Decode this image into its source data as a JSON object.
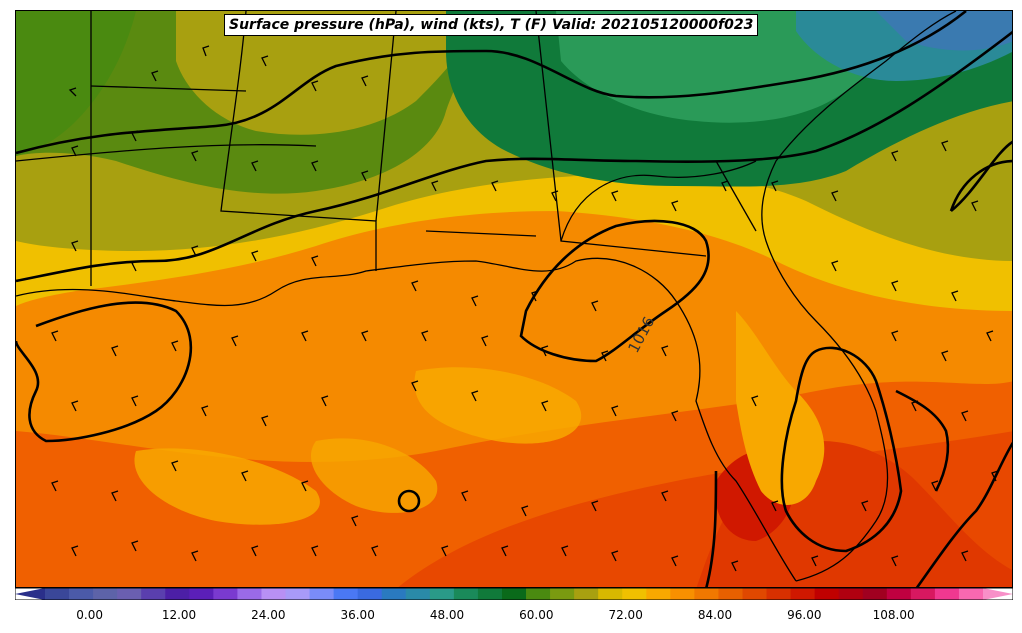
{
  "title": "Surface pressure (hPa), wind (kts), T (F) Valid: 202105120000f023",
  "isobar_label": "1016",
  "colorbar": {
    "ticks": [
      "0.00",
      "12.00",
      "24.00",
      "36.00",
      "48.00",
      "60.00",
      "72.00",
      "84.00",
      "96.00",
      "108.00"
    ],
    "tick_values": [
      0,
      12,
      24,
      36,
      48,
      60,
      72,
      84,
      96,
      108
    ],
    "range": [
      -6,
      120
    ],
    "colors": [
      "#2a2f8a",
      "#3a4799",
      "#4b5aa8",
      "#5d63a8",
      "#6a5fb0",
      "#5a3fae",
      "#4c1fa6",
      "#5b1fb8",
      "#7a3ad0",
      "#9a6ae8",
      "#b890f4",
      "#a89af8",
      "#7a8cf8",
      "#4a78f4",
      "#3a6ae0",
      "#2a7ac0",
      "#2a8aa8",
      "#2a9a88",
      "#1a8a5a",
      "#107a3a",
      "#0a6a1a",
      "#4a8a10",
      "#7a9a10",
      "#a8a010",
      "#d8b800",
      "#f0c000",
      "#f8a800",
      "#f89000",
      "#f07800",
      "#e86000",
      "#e04800",
      "#d83000",
      "#d01800",
      "#c00000",
      "#b00010",
      "#a00020",
      "#c00040",
      "#d81860",
      "#f03890",
      "#f868b0",
      "#f890c8"
    ]
  },
  "map": {
    "temperature_field_colors": {
      "cool_green": "#0f7a3a",
      "mid_green": "#3a9a50",
      "olive": "#5a8a10",
      "mustard": "#a8a010",
      "yellow": "#f0c000",
      "light_orange": "#f8a800",
      "orange": "#f58a00",
      "dark_orange": "#f06000",
      "red_orange": "#e04000",
      "red": "#d82000",
      "teal": "#2a8a98"
    }
  }
}
